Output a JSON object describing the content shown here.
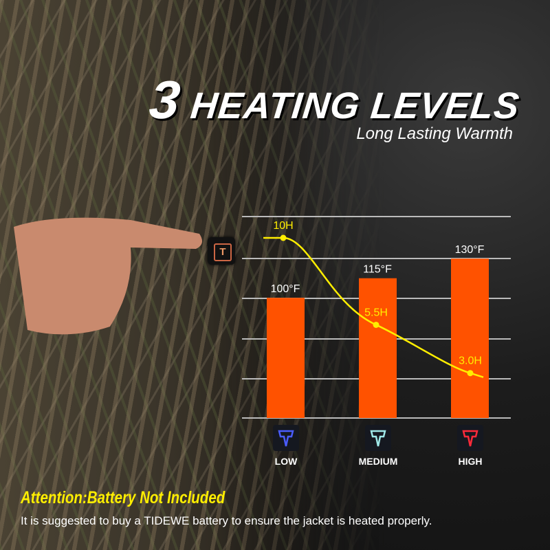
{
  "header": {
    "number": "3",
    "title": "HEATING LEVELS",
    "subtitle": "Long Lasting Warmth"
  },
  "chart_data": {
    "type": "bar",
    "categories": [
      "LOW",
      "MEDIUM",
      "HIGH"
    ],
    "series": [
      {
        "values": [
          100,
          115,
          130
        ],
        "labels": [
          "100°F",
          "115°F",
          "130°F"
        ],
        "kind": "bar",
        "color": "#ff5200"
      },
      {
        "values": [
          10,
          5.5,
          3.0
        ],
        "labels": [
          "10H",
          "5.5H",
          "3.0H"
        ],
        "kind": "line",
        "color": "#ffee00"
      }
    ],
    "grid": true,
    "level_icon_colors": [
      "#4a5cff",
      "#9fe8e8",
      "#ff2a3a"
    ]
  },
  "footer": {
    "attention": "Attention:Battery Not Included",
    "note": "It is suggested to buy a TIDEWE battery to ensure the jacket is heated properly."
  }
}
